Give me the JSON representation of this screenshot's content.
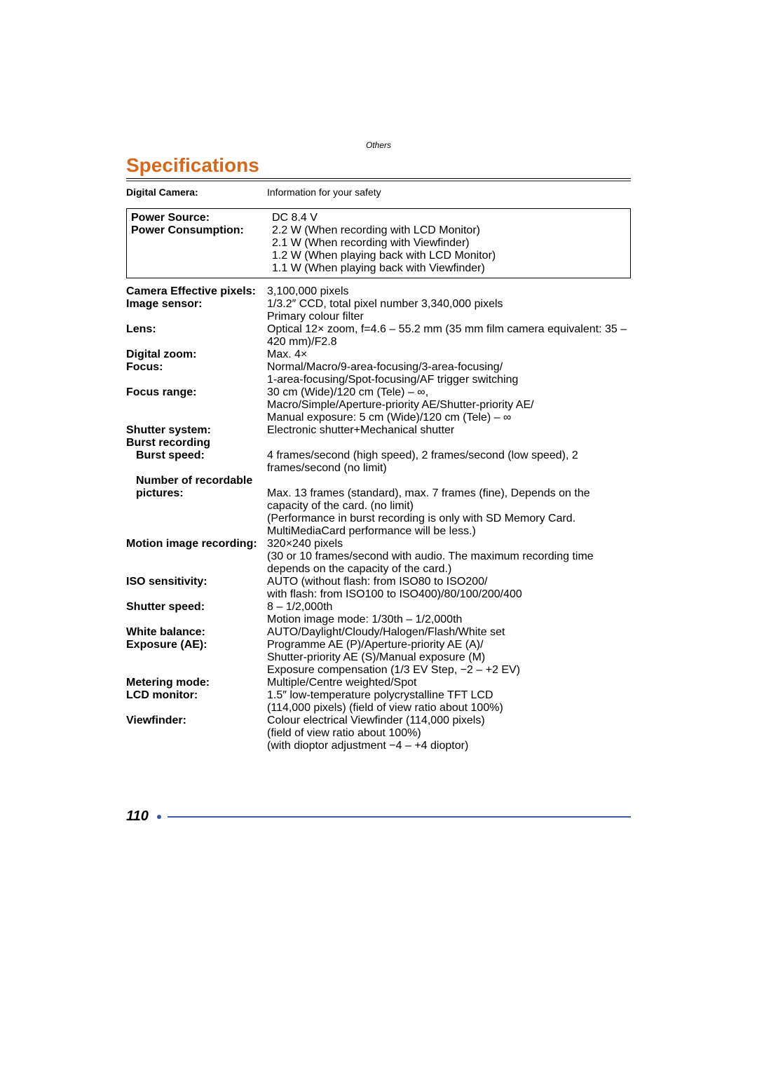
{
  "header": {
    "section": "Others",
    "title": "Specifications"
  },
  "top_row": {
    "label": "Digital Camera:",
    "value": "Information for your safety"
  },
  "boxed_rows": [
    {
      "label": "Power Source:",
      "value": "DC 8.4 V"
    },
    {
      "label": "Power Consumption:",
      "value": "2.2 W (When recording with LCD Monitor)\n2.1 W (When recording with Viewfinder)\n1.2 W (When playing back with LCD Monitor)\n1.1 W (When playing back with Viewfinder)"
    }
  ],
  "rows": [
    {
      "label": "Camera Effective pixels:",
      "value": "3,100,000 pixels"
    },
    {
      "label": "Image sensor:",
      "value": "1/3.2″ CCD, total pixel number 3,340,000 pixels\nPrimary colour filter"
    },
    {
      "label": "Lens:",
      "value": "Optical 12× zoom, f=4.6 – 55.2 mm (35 mm film camera equivalent: 35 – 420 mm)/F2.8"
    },
    {
      "label": "Digital zoom:",
      "value": "Max. 4×"
    },
    {
      "label": "Focus:",
      "value": "Normal/Macro/9-area-focusing/3-area-focusing/\n1-area-focusing/Spot-focusing/AF trigger switching"
    },
    {
      "label": "Focus range:",
      "value": "30 cm (Wide)/120 cm (Tele) – ∞,\nMacro/Simple/Aperture-priority AE/Shutter-priority AE/\nManual exposure: 5 cm (Wide)/120 cm (Tele) – ∞"
    },
    {
      "label": "Shutter system:",
      "value": "Electronic shutter+Mechanical shutter"
    },
    {
      "label": "Burst recording",
      "value": ""
    },
    {
      "label": "Burst speed:",
      "indent": true,
      "value": "4 frames/second (high speed), 2 frames/second (low speed), 2 frames/second (no limit)"
    },
    {
      "label": "Number of recordable",
      "indent": true,
      "value": ""
    },
    {
      "label": "pictures:",
      "indent": true,
      "value": "Max. 13 frames (standard), max. 7 frames (fine), Depends on the capacity of the card. (no limit)\n(Performance in burst recording is only with SD Memory Card. MultiMediaCard performance will be less.)"
    },
    {
      "label": "Motion image recording:",
      "value": "320×240 pixels\n(30 or 10 frames/second with audio. The maximum recording time depends on the capacity of the card.)"
    },
    {
      "label": "ISO sensitivity:",
      "value": "AUTO (without flash: from ISO80 to ISO200/\nwith flash: from ISO100 to ISO400)/80/100/200/400"
    },
    {
      "label": "Shutter speed:",
      "value": "8 – 1/2,000th\nMotion image mode: 1/30th – 1/2,000th"
    },
    {
      "label": "White balance:",
      "value": "AUTO/Daylight/Cloudy/Halogen/Flash/White set"
    },
    {
      "label": "Exposure (AE):",
      "value": "Programme AE (P)/Aperture-priority AE (A)/\nShutter-priority AE (S)/Manual exposure (M)\nExposure compensation (1/3 EV Step, −2 – +2 EV)"
    },
    {
      "label": "Metering mode:",
      "value": "Multiple/Centre weighted/Spot"
    },
    {
      "label": "LCD monitor:",
      "value": "1.5″ low-temperature polycrystalline TFT LCD\n(114,000 pixels) (field of view ratio about 100%)"
    },
    {
      "label": "Viewfinder:",
      "value": "Colour electrical Viewfinder (114,000 pixels)\n(field of view ratio about 100%)\n(with dioptor adjustment −4 – +4 dioptor)"
    }
  ],
  "page_number": "110"
}
